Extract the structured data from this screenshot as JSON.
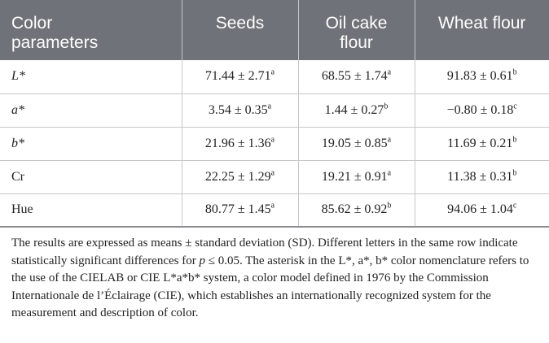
{
  "table": {
    "headers": [
      {
        "line1": "Color",
        "line2": "parameters"
      },
      {
        "line1": "Seeds",
        "line2": ""
      },
      {
        "line1": "Oil cake",
        "line2": "flour"
      },
      {
        "line1": "Wheat flour",
        "line2": ""
      }
    ],
    "rows": [
      {
        "param": "L*",
        "italic": true,
        "cells": [
          {
            "value": "71.44 ± 2.71",
            "sup": "a"
          },
          {
            "value": "68.55 ± 1.74",
            "sup": "a"
          },
          {
            "value": "91.83 ± 0.61",
            "sup": "b"
          }
        ]
      },
      {
        "param": "a*",
        "italic": true,
        "cells": [
          {
            "value": "3.54 ± 0.35",
            "sup": "a"
          },
          {
            "value": "1.44 ± 0.27",
            "sup": "b"
          },
          {
            "value": "−0.80 ± 0.18",
            "sup": "c"
          }
        ]
      },
      {
        "param": "b*",
        "italic": true,
        "cells": [
          {
            "value": "21.96 ± 1.36",
            "sup": "a"
          },
          {
            "value": "19.05 ± 0.85",
            "sup": "a"
          },
          {
            "value": "11.69 ± 0.21",
            "sup": "b"
          }
        ]
      },
      {
        "param": "Cr",
        "italic": false,
        "cells": [
          {
            "value": "22.25 ± 1.29",
            "sup": "a"
          },
          {
            "value": "19.21 ± 0.91",
            "sup": "a"
          },
          {
            "value": "11.38 ± 0.31",
            "sup": "b"
          }
        ]
      },
      {
        "param": "Hue",
        "italic": false,
        "cells": [
          {
            "value": "80.77 ± 1.45",
            "sup": "a"
          },
          {
            "value": "85.62 ± 0.92",
            "sup": "b"
          },
          {
            "value": "94.06 ± 1.04",
            "sup": "c"
          }
        ]
      }
    ]
  },
  "footnote": {
    "part1": "The results are expressed as means ± standard deviation (SD). Different letters in the same row indicate statistically significant differences for ",
    "p_symbol": "p",
    "part2": " ≤ 0.05. The asterisk in the L*, a*, b* color nomenclature refers to the use of the CIELAB or CIE L*a*b* system, a color model defined in 1976 by the Commission Internationale de l’Éclairage (CIE), which establishes an internationally recognized system for the measurement and description of color."
  },
  "colors": {
    "header_bg": "#6f7278",
    "header_text": "#ffffff",
    "grid": "#c6c7ca"
  }
}
